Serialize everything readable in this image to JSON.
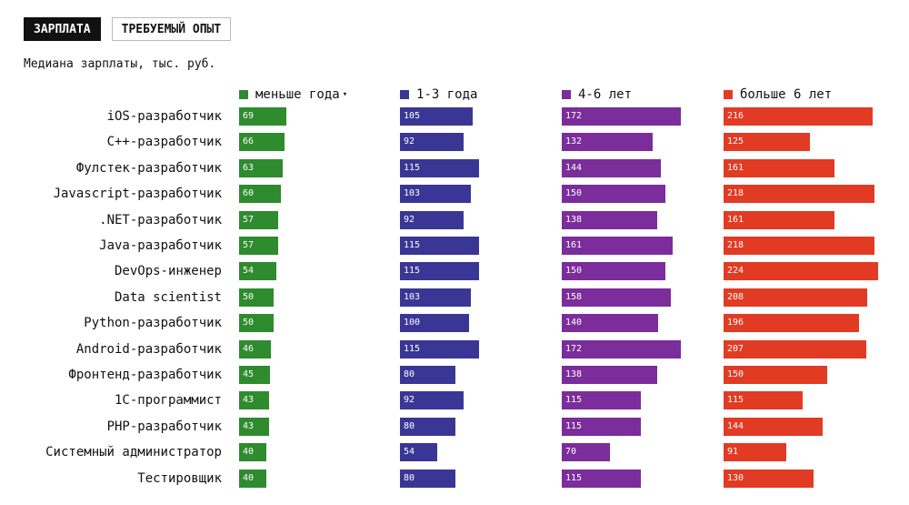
{
  "tabs": [
    {
      "label": "ЗАРПЛАТА",
      "active": true
    },
    {
      "label": "ТРЕБУЕМЫЙ ОПЫТ",
      "active": false
    }
  ],
  "subtitle": "Медиана зарплаты, тыс. руб.",
  "sort_icon": "sort-down-icon",
  "chart_data": {
    "type": "bar",
    "categories": [
      "iOS-разработчик",
      "C++-разработчик",
      "Фулстек-разработчик",
      "Javascript-разработчик",
      ".NET-разработчик",
      "Java-разработчик",
      "DevOps-инженер",
      "Data scientist",
      "Python-разработчик",
      "Android-разработчик",
      "Фронтенд-разработчик",
      "1С-программист",
      "PHP-разработчик",
      "Системный администратор",
      "Тестировщик"
    ],
    "series": [
      {
        "name": "меньше года",
        "color": "#2e8b2e",
        "values": [
          69,
          66,
          63,
          60,
          57,
          57,
          54,
          50,
          50,
          46,
          45,
          43,
          43,
          40,
          40
        ]
      },
      {
        "name": "1-3 года",
        "color": "#3a3696",
        "values": [
          105,
          92,
          115,
          103,
          92,
          115,
          115,
          103,
          100,
          115,
          80,
          92,
          80,
          54,
          80
        ]
      },
      {
        "name": "4-6 лет",
        "color": "#7a2d9b",
        "values": [
          172,
          132,
          144,
          150,
          138,
          161,
          150,
          158,
          140,
          172,
          138,
          115,
          115,
          70,
          115
        ]
      },
      {
        "name": "больше 6 лет",
        "color": "#e23b24",
        "values": [
          216,
          125,
          161,
          218,
          161,
          218,
          224,
          208,
          196,
          207,
          150,
          115,
          144,
          91,
          130
        ]
      }
    ],
    "sorted_by": "меньше года",
    "sort_direction": "descending"
  }
}
